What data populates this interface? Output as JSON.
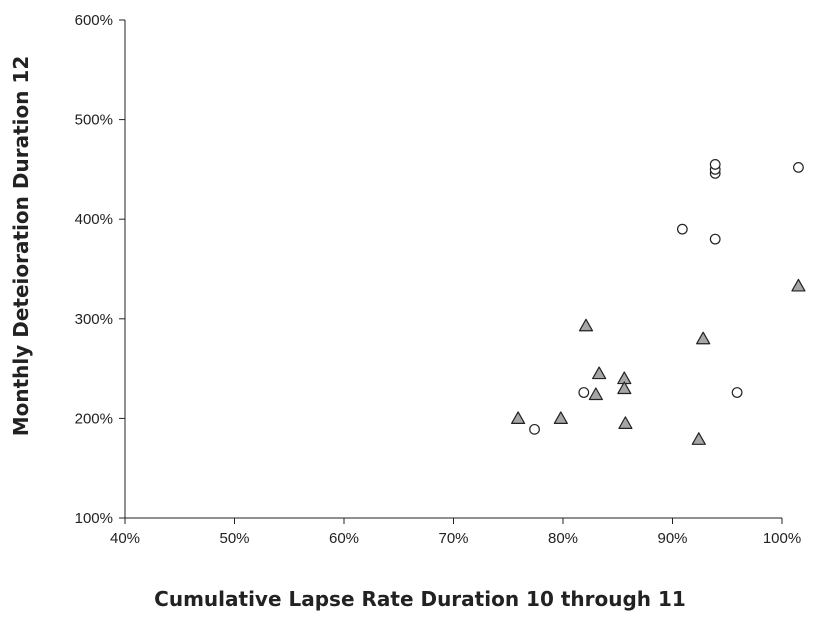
{
  "chart_data": {
    "type": "scatter",
    "xlabel": "Cumulative Lapse Rate Duration 10 through 11",
    "ylabel": "Monthly Deteioration Duration 12",
    "xlim": [
      40,
      100
    ],
    "ylim": [
      100,
      600
    ],
    "x_ticks": [
      40,
      50,
      60,
      70,
      80,
      90,
      100
    ],
    "y_ticks": [
      100,
      200,
      300,
      400,
      500,
      600
    ],
    "x_tick_labels": [
      "40%",
      "50%",
      "60%",
      "70%",
      "80%",
      "90%",
      "100%"
    ],
    "y_tick_labels": [
      "100%",
      "200%",
      "300%",
      "400%",
      "500%",
      "600%"
    ],
    "grid": false,
    "series": [
      {
        "marker": "circle",
        "color": "#ffffff",
        "points": [
          {
            "x": 77.4,
            "y": 189
          },
          {
            "x": 81.9,
            "y": 226
          },
          {
            "x": 90.9,
            "y": 390
          },
          {
            "x": 93.9,
            "y": 380
          },
          {
            "x": 93.9,
            "y": 446
          },
          {
            "x": 93.9,
            "y": 450
          },
          {
            "x": 93.9,
            "y": 455
          },
          {
            "x": 95.9,
            "y": 226
          },
          {
            "x": 101.5,
            "y": 452
          }
        ]
      },
      {
        "marker": "triangle",
        "color": "#a6a6a6",
        "points": [
          {
            "x": 75.9,
            "y": 200
          },
          {
            "x": 79.8,
            "y": 200
          },
          {
            "x": 82.1,
            "y": 293
          },
          {
            "x": 83.0,
            "y": 224
          },
          {
            "x": 83.3,
            "y": 245
          },
          {
            "x": 85.6,
            "y": 240
          },
          {
            "x": 85.6,
            "y": 230
          },
          {
            "x": 85.7,
            "y": 195
          },
          {
            "x": 92.4,
            "y": 179
          },
          {
            "x": 92.8,
            "y": 280
          },
          {
            "x": 101.5,
            "y": 333
          }
        ]
      }
    ]
  }
}
